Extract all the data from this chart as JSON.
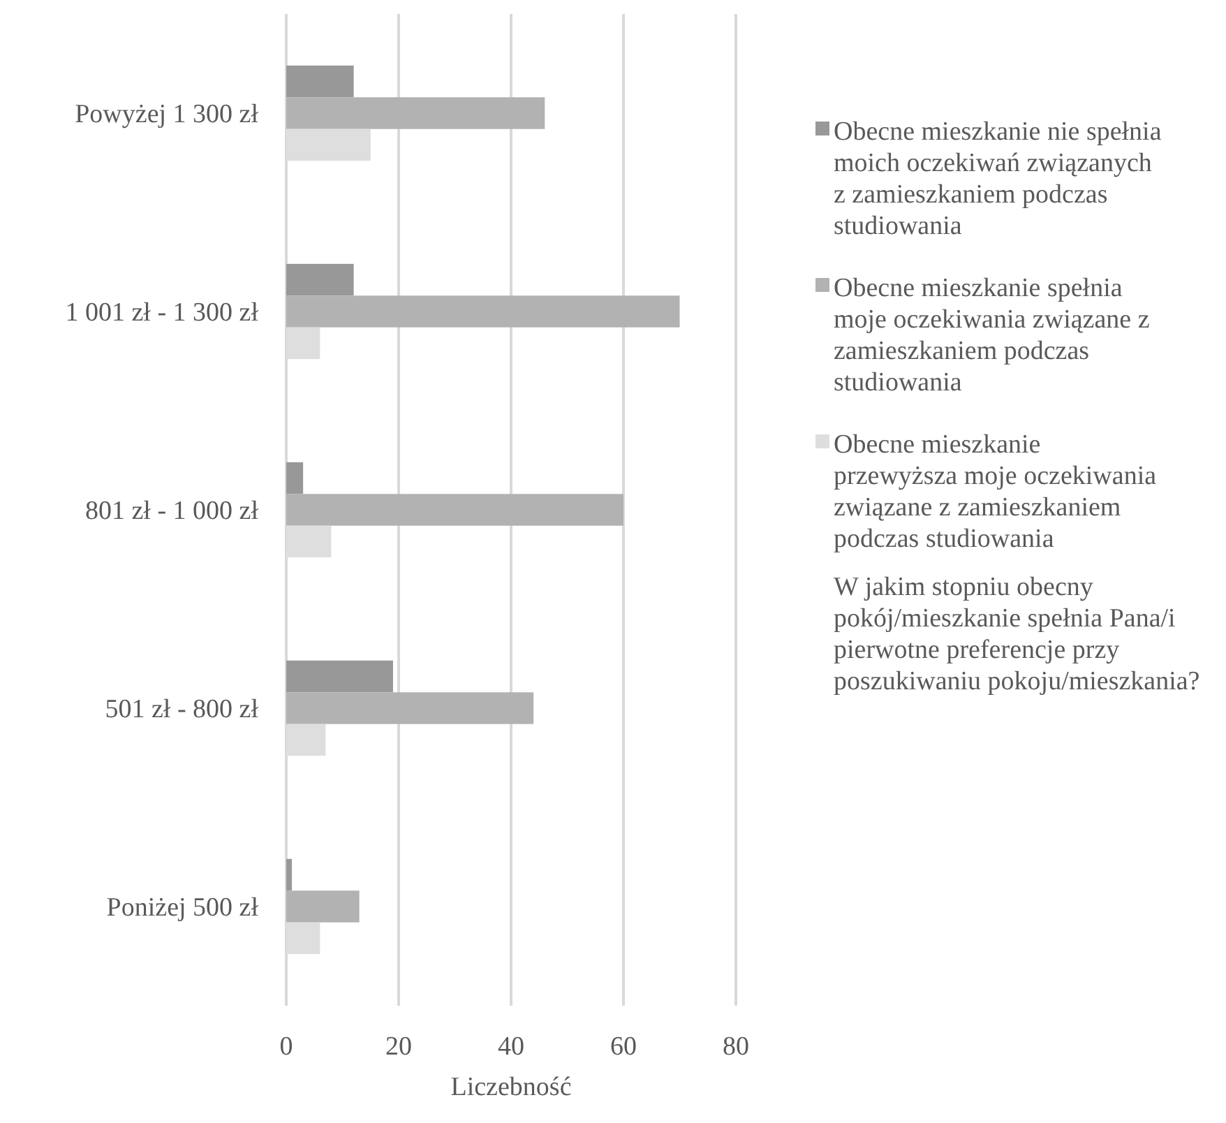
{
  "chart_data": {
    "type": "bar",
    "orientation": "horizontal",
    "xlabel": "Liczebność",
    "legend_title": "W jakim stopniu obecny pokój/mieszkanie spełnia Pana/i pierwotne preferencje przy poszukiwaniu pokoju/mieszkania?",
    "categories": [
      "Powyżej 1 300 zł",
      "1 001 zł - 1 300 zł",
      "801 zł - 1 000 zł",
      "501 zł - 800 zł",
      "Poniżej 500 zł"
    ],
    "series": [
      {
        "name": "Obecne mieszkanie nie spełnia moich oczekiwań związanych z zamieszkaniem podczas studiowania",
        "color": "#989898",
        "values": [
          12,
          12,
          3,
          19,
          1
        ]
      },
      {
        "name": "Obecne mieszkanie spełnia moje oczekiwania związane z zamieszkaniem podczas studiowania",
        "color": "#b2b2b2",
        "values": [
          46,
          70,
          60,
          44,
          13
        ]
      },
      {
        "name": "Obecne mieszkanie przewyższa moje oczekiwania związane z zamieszkaniem podczas studiowania",
        "color": "#dedede",
        "values": [
          15,
          6,
          8,
          7,
          6
        ]
      }
    ],
    "xlim": [
      0,
      80
    ],
    "xticks": [
      0,
      20,
      40,
      60,
      80
    ],
    "grid": "x",
    "legend": "right"
  }
}
